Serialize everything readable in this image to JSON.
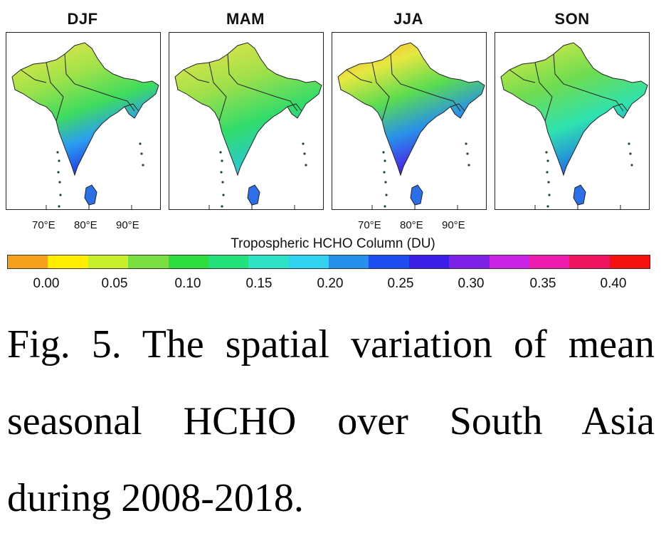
{
  "panels": [
    {
      "title": "DJF"
    },
    {
      "title": "MAM"
    },
    {
      "title": "JJA"
    },
    {
      "title": "SON"
    }
  ],
  "longitude_ticks": [
    "70°E",
    "80°E",
    "90°E"
  ],
  "colorbar": {
    "title": "Tropospheric HCHO Column (DU)",
    "ticks": [
      "0.00",
      "0.05",
      "0.10",
      "0.15",
      "0.20",
      "0.25",
      "0.30",
      "0.35",
      "0.40"
    ],
    "colors": [
      "#f7a21a",
      "#ffee00",
      "#c8ef2a",
      "#7ae042",
      "#2ddc3e",
      "#22e07a",
      "#2ee2c4",
      "#2fd2ef",
      "#2890ea",
      "#1f4ef0",
      "#3b1fe6",
      "#7c22e6",
      "#cc23e8",
      "#ef1cb0",
      "#f0145e",
      "#f51010"
    ]
  },
  "caption": {
    "line1": "Fig. 5. The spatial variation of mean",
    "line2": "seasonal HCHO over South Asia",
    "line3": "during 2008-2018."
  }
}
